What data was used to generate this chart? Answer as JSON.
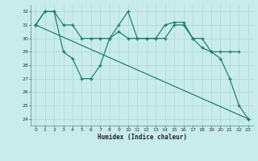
{
  "title": "",
  "xlabel": "Humidex (Indice chaleur)",
  "bg_color": "#c8ecec",
  "grid_color": "#aed4d4",
  "line_color": "#1a7a6e",
  "xlim": [
    -0.5,
    23.5
  ],
  "ylim": [
    23.5,
    32.5
  ],
  "yticks": [
    24,
    25,
    26,
    27,
    28,
    29,
    30,
    31,
    32
  ],
  "xticks": [
    0,
    1,
    2,
    3,
    4,
    5,
    6,
    7,
    8,
    9,
    10,
    11,
    12,
    13,
    14,
    15,
    16,
    17,
    18,
    19,
    20,
    21,
    22,
    23
  ],
  "line1_x": [
    0,
    1,
    2,
    3,
    4,
    5,
    6,
    7,
    8,
    9,
    10,
    11,
    12,
    13,
    14,
    15,
    16,
    17,
    18,
    19,
    20,
    21,
    22
  ],
  "line1_y": [
    31,
    32,
    32,
    31,
    31,
    30,
    30,
    30,
    30,
    31,
    32,
    30,
    30,
    30,
    30,
    31,
    31,
    30,
    30,
    29,
    29,
    29,
    29
  ],
  "line2_x": [
    0,
    1,
    2,
    3,
    4,
    5,
    6,
    7,
    8,
    9,
    10,
    11,
    12,
    13,
    14,
    15,
    16,
    17,
    18,
    19,
    20,
    21,
    22,
    23
  ],
  "line2_y": [
    31,
    32,
    32,
    29,
    28.5,
    27,
    27,
    28,
    30,
    30.5,
    30,
    30,
    30,
    30,
    31,
    31.2,
    31.2,
    30,
    29.3,
    29,
    28.5,
    27,
    25,
    24
  ],
  "line3_x": [
    0,
    23
  ],
  "line3_y": [
    31,
    24
  ]
}
